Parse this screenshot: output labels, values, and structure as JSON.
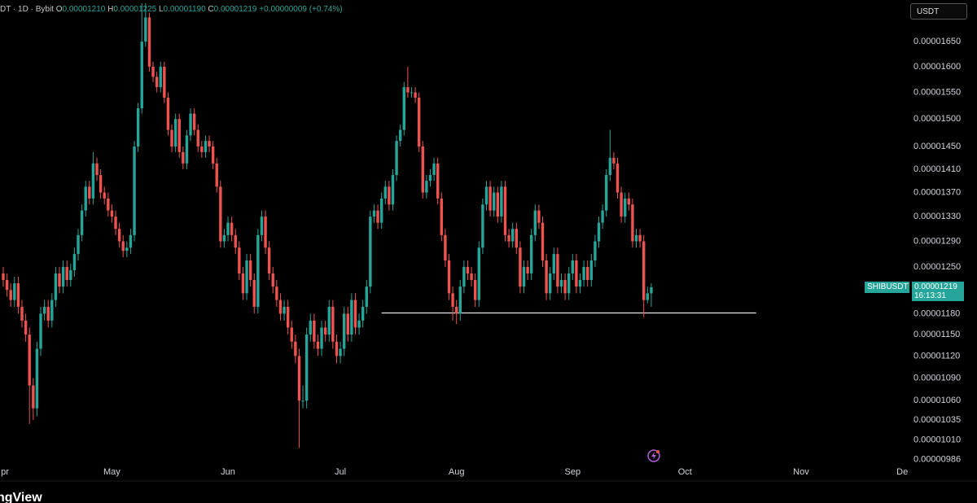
{
  "header": {
    "symbol": "DT · 1D · Bybit",
    "ohlc": [
      {
        "key": "O",
        "value": "0.00001210"
      },
      {
        "key": "H",
        "value": "0.00001225"
      },
      {
        "key": "L",
        "value": "0.00001190"
      },
      {
        "key": "C",
        "value": "0.00001219"
      }
    ],
    "change": "+0.00000009 (+0.74%)"
  },
  "currency": "USDT",
  "price_tag": {
    "symbol": "SHIBUSDT",
    "price": "0.00001219",
    "countdown": "16:13:31"
  },
  "brand": "ngView",
  "chart_data": {
    "type": "candlestick",
    "log": true,
    "up_color": "#26a69a",
    "down_color": "#ef5350",
    "open": [
      1.24e-05,
      1.23e-05,
      1.215e-05,
      1.2e-05,
      1.225e-05,
      1.19e-05,
      1.17e-05,
      1.15e-05,
      1.08e-05,
      1.05e-05,
      1.13e-05,
      1.18e-05,
      1.19e-05,
      1.17e-05,
      1.2e-05,
      1.24e-05,
      1.22e-05,
      1.25e-05,
      1.23e-05,
      1.245e-05,
      1.27e-05,
      1.3e-05,
      1.34e-05,
      1.38e-05,
      1.36e-05,
      1.42e-05,
      1.4e-05,
      1.37e-05,
      1.36e-05,
      1.34e-05,
      1.33e-05,
      1.31e-05,
      1.29e-05,
      1.275e-05,
      1.28e-05,
      1.3e-05,
      1.45e-05,
      1.52e-05,
      1.65e-05,
      1.7e-05,
      1.6e-05,
      1.58e-05,
      1.56e-05,
      1.6e-05,
      1.54e-05,
      1.48e-05,
      1.45e-05,
      1.5e-05,
      1.44e-05,
      1.42e-05,
      1.47e-05,
      1.51e-05,
      1.48e-05,
      1.45e-05,
      1.44e-05,
      1.46e-05,
      1.45e-05,
      1.42e-05,
      1.38e-05,
      1.29e-05,
      1.3e-05,
      1.32e-05,
      1.3e-05,
      1.28e-05,
      1.24e-05,
      1.21e-05,
      1.26e-05,
      1.23e-05,
      1.19e-05,
      1.3e-05,
      1.33e-05,
      1.28e-05,
      1.24e-05,
      1.22e-05,
      1.2e-05,
      1.18e-05,
      1.19e-05,
      1.16e-05,
      1.14e-05,
      1.12e-05,
      1.06e-05,
      1.06e-05,
      1.15e-05,
      1.17e-05,
      1.14e-05,
      1.13e-05,
      1.16e-05,
      1.15e-05,
      1.19e-05,
      1.14e-05,
      1.12e-05,
      1.13e-05,
      1.18e-05,
      1.15e-05,
      1.2e-05,
      1.16e-05,
      1.17e-05,
      1.19e-05,
      1.22e-05,
      1.33e-05,
      1.34e-05,
      1.32e-05,
      1.36e-05,
      1.38e-05,
      1.35e-05,
      1.4e-05,
      1.46e-05,
      1.48e-05,
      1.56e-05,
      1.55e-05,
      1.55e-05,
      1.54e-05,
      1.45e-05,
      1.37e-05,
      1.39e-05,
      1.4e-05,
      1.42e-05,
      1.36e-05,
      1.3e-05,
      1.26e-05,
      1.21e-05,
      1.19e-05,
      1.18e-05,
      1.22e-05,
      1.25e-05,
      1.24e-05,
      1.23e-05,
      1.2e-05,
      1.28e-05,
      1.35e-05,
      1.38e-05,
      1.34e-05,
      1.37e-05,
      1.33e-05,
      1.38e-05,
      1.3e-05,
      1.29e-05,
      1.31e-05,
      1.28e-05,
      1.22e-05,
      1.25e-05,
      1.24e-05,
      1.3e-05,
      1.34e-05,
      1.32e-05,
      1.26e-05,
      1.21e-05,
      1.24e-05,
      1.27e-05,
      1.22e-05,
      1.23e-05,
      1.21e-05,
      1.24e-05,
      1.26e-05,
      1.22e-05,
      1.23e-05,
      1.25e-05,
      1.23e-05,
      1.26e-05,
      1.29e-05,
      1.32e-05,
      1.34e-05,
      1.4e-05,
      1.43e-05,
      1.42e-05,
      1.37e-05,
      1.33e-05,
      1.36e-05,
      1.35e-05,
      1.29e-05,
      1.3e-05,
      1.29e-05,
      1.2e-05,
      1.21e-05
    ],
    "high": [
      1.25e-05,
      1.24e-05,
      1.225e-05,
      1.235e-05,
      1.235e-05,
      1.2e-05,
      1.18e-05,
      1.16e-05,
      1.09e-05,
      1.14e-05,
      1.19e-05,
      1.2e-05,
      1.2e-05,
      1.21e-05,
      1.25e-05,
      1.25e-05,
      1.26e-05,
      1.26e-05,
      1.255e-05,
      1.28e-05,
      1.31e-05,
      1.35e-05,
      1.39e-05,
      1.39e-05,
      1.44e-05,
      1.43e-05,
      1.41e-05,
      1.38e-05,
      1.37e-05,
      1.35e-05,
      1.34e-05,
      1.32e-05,
      1.3e-05,
      1.29e-05,
      1.31e-05,
      1.46e-05,
      1.53e-05,
      1.73e-05,
      1.73e-05,
      1.71e-05,
      1.61e-05,
      1.59e-05,
      1.61e-05,
      1.61e-05,
      1.55e-05,
      1.49e-05,
      1.51e-05,
      1.51e-05,
      1.45e-05,
      1.48e-05,
      1.52e-05,
      1.52e-05,
      1.49e-05,
      1.46e-05,
      1.47e-05,
      1.47e-05,
      1.46e-05,
      1.43e-05,
      1.39e-05,
      1.31e-05,
      1.33e-05,
      1.33e-05,
      1.31e-05,
      1.29e-05,
      1.25e-05,
      1.27e-05,
      1.27e-05,
      1.24e-05,
      1.31e-05,
      1.34e-05,
      1.34e-05,
      1.29e-05,
      1.25e-05,
      1.23e-05,
      1.21e-05,
      1.2e-05,
      1.2e-05,
      1.17e-05,
      1.15e-05,
      1.13e-05,
      1.08e-05,
      1.16e-05,
      1.18e-05,
      1.18e-05,
      1.15e-05,
      1.17e-05,
      1.17e-05,
      1.2e-05,
      1.2e-05,
      1.15e-05,
      1.14e-05,
      1.19e-05,
      1.19e-05,
      1.21e-05,
      1.21e-05,
      1.18e-05,
      1.2e-05,
      1.23e-05,
      1.34e-05,
      1.35e-05,
      1.35e-05,
      1.37e-05,
      1.39e-05,
      1.39e-05,
      1.41e-05,
      1.47e-05,
      1.49e-05,
      1.57e-05,
      1.6e-05,
      1.56e-05,
      1.56e-05,
      1.55e-05,
      1.46e-05,
      1.4e-05,
      1.41e-05,
      1.43e-05,
      1.43e-05,
      1.37e-05,
      1.31e-05,
      1.27e-05,
      1.22e-05,
      1.2e-05,
      1.23e-05,
      1.26e-05,
      1.26e-05,
      1.25e-05,
      1.24e-05,
      1.29e-05,
      1.36e-05,
      1.39e-05,
      1.39e-05,
      1.38e-05,
      1.38e-05,
      1.39e-05,
      1.39e-05,
      1.31e-05,
      1.32e-05,
      1.32e-05,
      1.29e-05,
      1.26e-05,
      1.26e-05,
      1.31e-05,
      1.35e-05,
      1.35e-05,
      1.33e-05,
      1.27e-05,
      1.25e-05,
      1.28e-05,
      1.28e-05,
      1.24e-05,
      1.24e-05,
      1.25e-05,
      1.27e-05,
      1.27e-05,
      1.24e-05,
      1.26e-05,
      1.26e-05,
      1.27e-05,
      1.3e-05,
      1.33e-05,
      1.35e-05,
      1.41e-05,
      1.48e-05,
      1.44e-05,
      1.43e-05,
      1.38e-05,
      1.37e-05,
      1.37e-05,
      1.36e-05,
      1.31e-05,
      1.31e-05,
      1.3e-05,
      1.22e-05,
      1.225e-05
    ],
    "low": [
      1.22e-05,
      1.205e-05,
      1.19e-05,
      1.19e-05,
      1.18e-05,
      1.16e-05,
      1.14e-05,
      1.03e-05,
      1.035e-05,
      1.04e-05,
      1.12e-05,
      1.17e-05,
      1.16e-05,
      1.16e-05,
      1.19e-05,
      1.21e-05,
      1.21e-05,
      1.22e-05,
      1.22e-05,
      1.235e-05,
      1.26e-05,
      1.29e-05,
      1.33e-05,
      1.35e-05,
      1.35e-05,
      1.39e-05,
      1.36e-05,
      1.35e-05,
      1.33e-05,
      1.32e-05,
      1.3e-05,
      1.28e-05,
      1.265e-05,
      1.265e-05,
      1.27e-05,
      1.29e-05,
      1.44e-05,
      1.51e-05,
      1.64e-05,
      1.59e-05,
      1.57e-05,
      1.55e-05,
      1.55e-05,
      1.53e-05,
      1.47e-05,
      1.44e-05,
      1.44e-05,
      1.43e-05,
      1.41e-05,
      1.41e-05,
      1.46e-05,
      1.47e-05,
      1.44e-05,
      1.43e-05,
      1.43e-05,
      1.44e-05,
      1.41e-05,
      1.37e-05,
      1.28e-05,
      1.28e-05,
      1.29e-05,
      1.29e-05,
      1.27e-05,
      1.23e-05,
      1.2e-05,
      1.2e-05,
      1.22e-05,
      1.18e-05,
      1.18e-05,
      1.29e-05,
      1.27e-05,
      1.23e-05,
      1.21e-05,
      1.19e-05,
      1.17e-05,
      1.17e-05,
      1.15e-05,
      1.13e-05,
      1.11e-05,
      1e-05,
      1.05e-05,
      1.05e-05,
      1.14e-05,
      1.13e-05,
      1.12e-05,
      1.12e-05,
      1.14e-05,
      1.14e-05,
      1.13e-05,
      1.11e-05,
      1.11e-05,
      1.12e-05,
      1.14e-05,
      1.14e-05,
      1.15e-05,
      1.15e-05,
      1.16e-05,
      1.18e-05,
      1.21e-05,
      1.32e-05,
      1.31e-05,
      1.31e-05,
      1.35e-05,
      1.34e-05,
      1.34e-05,
      1.39e-05,
      1.45e-05,
      1.47e-05,
      1.54e-05,
      1.54e-05,
      1.53e-05,
      1.44e-05,
      1.36e-05,
      1.36e-05,
      1.38e-05,
      1.39e-05,
      1.35e-05,
      1.29e-05,
      1.25e-05,
      1.2e-05,
      1.17e-05,
      1.165e-05,
      1.17e-05,
      1.21e-05,
      1.23e-05,
      1.22e-05,
      1.19e-05,
      1.19e-05,
      1.27e-05,
      1.34e-05,
      1.33e-05,
      1.33e-05,
      1.32e-05,
      1.32e-05,
      1.29e-05,
      1.28e-05,
      1.28e-05,
      1.27e-05,
      1.21e-05,
      1.21e-05,
      1.23e-05,
      1.23e-05,
      1.29e-05,
      1.31e-05,
      1.25e-05,
      1.2e-05,
      1.2e-05,
      1.23e-05,
      1.21e-05,
      1.21e-05,
      1.2e-05,
      1.2e-05,
      1.23e-05,
      1.21e-05,
      1.21e-05,
      1.22e-05,
      1.22e-05,
      1.22e-05,
      1.25e-05,
      1.28e-05,
      1.31e-05,
      1.33e-05,
      1.39e-05,
      1.41e-05,
      1.36e-05,
      1.32e-05,
      1.32e-05,
      1.34e-05,
      1.28e-05,
      1.28e-05,
      1.28e-05,
      1.175e-05,
      1.195e-05,
      1.19e-05
    ],
    "close": [
      1.23e-05,
      1.215e-05,
      1.2e-05,
      1.225e-05,
      1.19e-05,
      1.17e-05,
      1.15e-05,
      1.08e-05,
      1.05e-05,
      1.13e-05,
      1.18e-05,
      1.19e-05,
      1.17e-05,
      1.2e-05,
      1.24e-05,
      1.22e-05,
      1.25e-05,
      1.23e-05,
      1.245e-05,
      1.27e-05,
      1.3e-05,
      1.34e-05,
      1.38e-05,
      1.36e-05,
      1.42e-05,
      1.4e-05,
      1.37e-05,
      1.36e-05,
      1.34e-05,
      1.33e-05,
      1.31e-05,
      1.29e-05,
      1.275e-05,
      1.28e-05,
      1.3e-05,
      1.45e-05,
      1.52e-05,
      1.65e-05,
      1.7e-05,
      1.6e-05,
      1.58e-05,
      1.56e-05,
      1.6e-05,
      1.54e-05,
      1.48e-05,
      1.45e-05,
      1.5e-05,
      1.44e-05,
      1.42e-05,
      1.47e-05,
      1.51e-05,
      1.48e-05,
      1.45e-05,
      1.44e-05,
      1.46e-05,
      1.45e-05,
      1.42e-05,
      1.38e-05,
      1.29e-05,
      1.3e-05,
      1.32e-05,
      1.3e-05,
      1.28e-05,
      1.24e-05,
      1.21e-05,
      1.26e-05,
      1.23e-05,
      1.19e-05,
      1.3e-05,
      1.33e-05,
      1.28e-05,
      1.24e-05,
      1.22e-05,
      1.2e-05,
      1.18e-05,
      1.19e-05,
      1.16e-05,
      1.14e-05,
      1.12e-05,
      1.06e-05,
      1.06e-05,
      1.15e-05,
      1.17e-05,
      1.14e-05,
      1.13e-05,
      1.16e-05,
      1.15e-05,
      1.19e-05,
      1.14e-05,
      1.12e-05,
      1.13e-05,
      1.18e-05,
      1.15e-05,
      1.2e-05,
      1.16e-05,
      1.17e-05,
      1.19e-05,
      1.22e-05,
      1.33e-05,
      1.34e-05,
      1.32e-05,
      1.36e-05,
      1.38e-05,
      1.35e-05,
      1.4e-05,
      1.46e-05,
      1.48e-05,
      1.56e-05,
      1.55e-05,
      1.55e-05,
      1.54e-05,
      1.45e-05,
      1.37e-05,
      1.39e-05,
      1.4e-05,
      1.42e-05,
      1.36e-05,
      1.3e-05,
      1.26e-05,
      1.21e-05,
      1.19e-05,
      1.18e-05,
      1.22e-05,
      1.25e-05,
      1.24e-05,
      1.23e-05,
      1.2e-05,
      1.28e-05,
      1.35e-05,
      1.38e-05,
      1.34e-05,
      1.37e-05,
      1.33e-05,
      1.38e-05,
      1.3e-05,
      1.29e-05,
      1.31e-05,
      1.28e-05,
      1.22e-05,
      1.25e-05,
      1.24e-05,
      1.3e-05,
      1.34e-05,
      1.32e-05,
      1.26e-05,
      1.21e-05,
      1.24e-05,
      1.27e-05,
      1.22e-05,
      1.23e-05,
      1.21e-05,
      1.24e-05,
      1.26e-05,
      1.22e-05,
      1.23e-05,
      1.25e-05,
      1.23e-05,
      1.26e-05,
      1.29e-05,
      1.32e-05,
      1.34e-05,
      1.4e-05,
      1.43e-05,
      1.42e-05,
      1.37e-05,
      1.33e-05,
      1.36e-05,
      1.35e-05,
      1.29e-05,
      1.3e-05,
      1.29e-05,
      1.2e-05,
      1.21e-05,
      1.219e-05
    ],
    "xlim": [
      -0.87,
      240.4
    ],
    "xticks": [
      {
        "value": 0,
        "label": "pr"
      },
      {
        "value": 29,
        "label": "May"
      },
      {
        "value": 60,
        "label": "Jun"
      },
      {
        "value": 90,
        "label": "Jul"
      },
      {
        "value": 121,
        "label": "Aug"
      },
      {
        "value": 152,
        "label": "Sep"
      },
      {
        "value": 182,
        "label": "Oct"
      },
      {
        "value": 213,
        "label": "Nov"
      },
      {
        "value": 240,
        "label": "De"
      }
    ],
    "ylim": [
      9.61e-06,
      1.737e-05
    ],
    "yticks": [
      {
        "value": 1.65e-05,
        "label": "0.00001650"
      },
      {
        "value": 1.6e-05,
        "label": "0.00001600"
      },
      {
        "value": 1.55e-05,
        "label": "0.00001550"
      },
      {
        "value": 1.5e-05,
        "label": "0.00001500"
      },
      {
        "value": 1.45e-05,
        "label": "0.00001450"
      },
      {
        "value": 1.41e-05,
        "label": "0.00001410"
      },
      {
        "value": 1.37e-05,
        "label": "0.00001370"
      },
      {
        "value": 1.33e-05,
        "label": "0.00001330"
      },
      {
        "value": 1.29e-05,
        "label": "0.00001290"
      },
      {
        "value": 1.25e-05,
        "label": "0.00001250"
      },
      {
        "value": 1.18e-05,
        "label": "0.00001180"
      },
      {
        "value": 1.15e-05,
        "label": "0.00001150"
      },
      {
        "value": 1.12e-05,
        "label": "0.00001120"
      },
      {
        "value": 1.09e-05,
        "label": "0.00001090"
      },
      {
        "value": 1.06e-05,
        "label": "0.00001060"
      },
      {
        "value": 1.035e-05,
        "label": "0.00001035"
      },
      {
        "value": 1.01e-05,
        "label": "0.00001010"
      },
      {
        "value": 9.86e-06,
        "label": "0.00000986"
      }
    ],
    "support_line": {
      "value": 1.181e-05,
      "from": 101,
      "to": 201,
      "color": "#e6e6e6"
    }
  }
}
